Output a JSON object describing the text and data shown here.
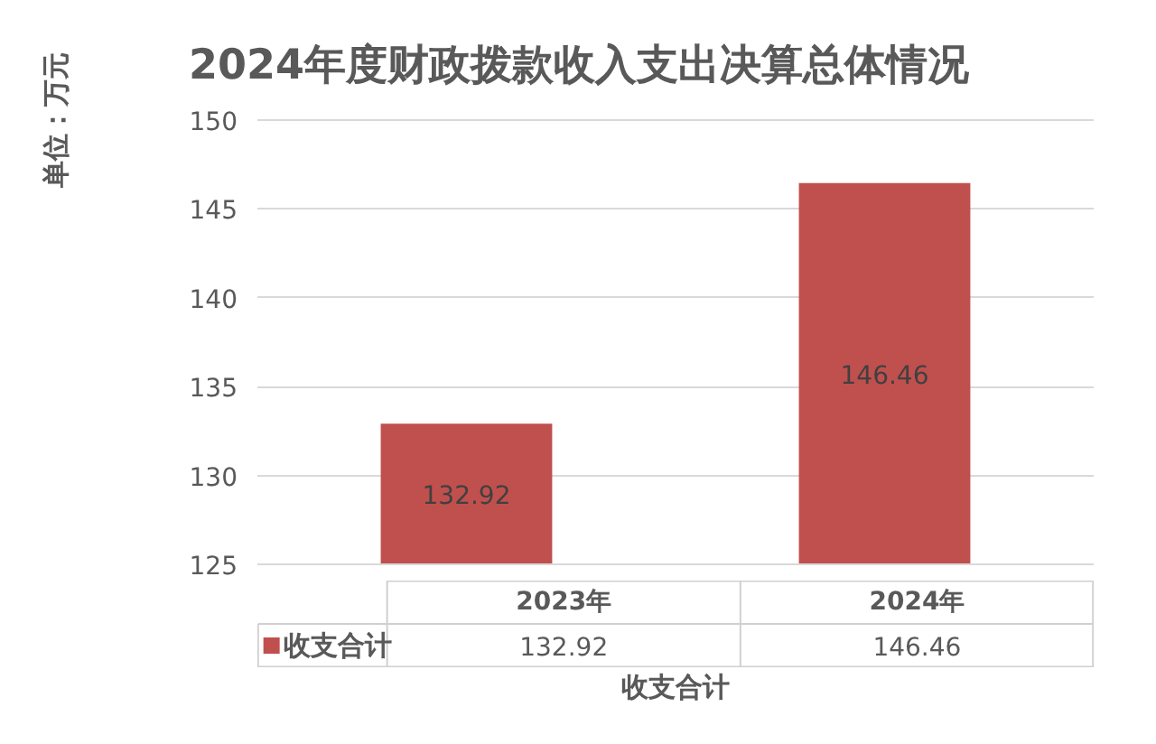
{
  "chart_data": {
    "type": "bar",
    "title": "2024年度财政拨款收入支出决算总体情况",
    "xlabel": "收支合计",
    "ylabel": "单位：万元",
    "categories": [
      "2023年",
      "2024年"
    ],
    "series": [
      {
        "name": "收支合计",
        "color": "#c0504d",
        "values": [
          132.92,
          146.46
        ]
      }
    ],
    "annotations": [
      "132.92",
      "146.46"
    ],
    "ylim": [
      125,
      150
    ],
    "yticks": [
      125,
      130,
      135,
      140,
      145,
      150
    ],
    "grid": "y",
    "legend": "bottom",
    "data_labels": true
  }
}
